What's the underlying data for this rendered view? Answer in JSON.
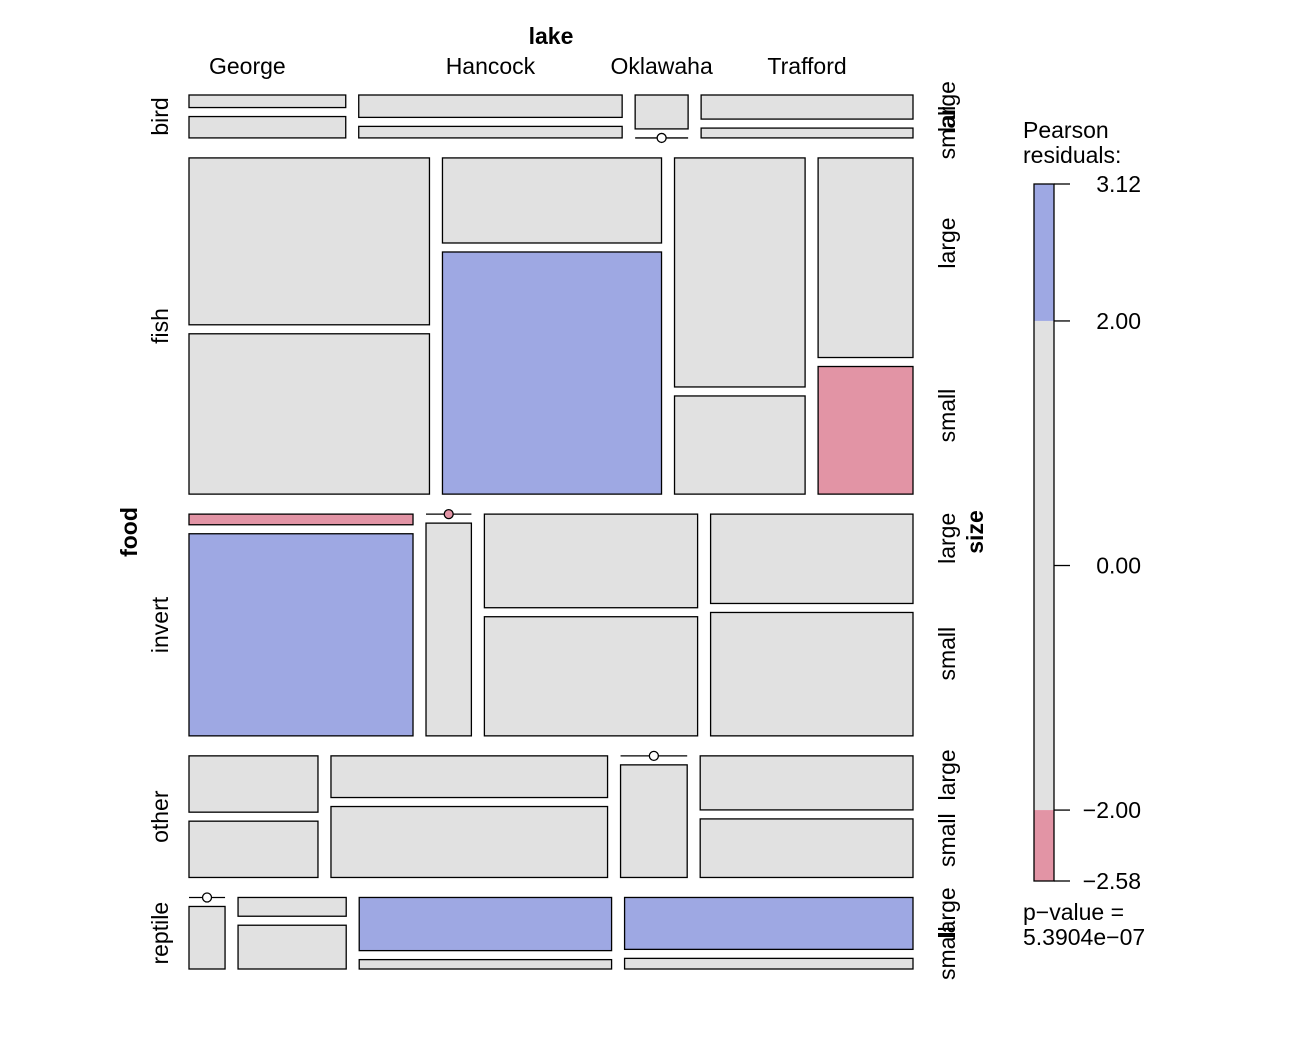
{
  "chart_data": {
    "type": "mosaic",
    "title": "",
    "variables": {
      "columns": {
        "name": "lake",
        "levels": [
          "George",
          "Hancock",
          "Oklawaha",
          "Trafford"
        ]
      },
      "rows": {
        "name": "food",
        "levels": [
          "bird",
          "fish",
          "invert",
          "other",
          "reptile"
        ]
      },
      "split": {
        "name": "size",
        "levels": [
          "large",
          "small"
        ]
      }
    },
    "row_heights": [
      0.06,
      0.47,
      0.31,
      0.17,
      0.1
    ],
    "cells": [
      {
        "food": "bird",
        "parts": [
          {
            "lake": "George",
            "frac": 0.216,
            "split": [
              0.37,
              0.63
            ],
            "residual": [
              0,
              0
            ]
          },
          {
            "lake": "Hancock",
            "frac": 0.363,
            "split": [
              0.66,
              0.34
            ],
            "residual": [
              0,
              0
            ]
          },
          {
            "lake": "Oklawaha",
            "frac": 0.073,
            "split": [
              1.0,
              0.0
            ],
            "residual": [
              0,
              0
            ]
          },
          {
            "lake": "Trafford",
            "frac": 0.292,
            "split": [
              0.71,
              0.29
            ],
            "residual": [
              0,
              0
            ]
          }
        ]
      },
      {
        "food": "fish",
        "parts": [
          {
            "lake": "George",
            "frac": 0.337,
            "split": [
              0.51,
              0.49
            ],
            "residual": [
              0,
              0
            ]
          },
          {
            "lake": "Hancock",
            "frac": 0.307,
            "split": [
              0.26,
              0.74
            ],
            "residual": [
              0,
              2.5
            ]
          },
          {
            "lake": "Oklawaha",
            "frac": 0.183,
            "split": [
              0.7,
              0.3
            ],
            "residual": [
              0,
              0
            ]
          },
          {
            "lake": "Trafford",
            "frac": 0.133,
            "split": [
              0.61,
              0.39
            ],
            "residual": [
              0,
              -2.3
            ]
          }
        ]
      },
      {
        "food": "invert",
        "parts": [
          {
            "lake": "George",
            "frac": 0.311,
            "split": [
              0.05,
              0.95
            ],
            "residual": [
              -2.2,
              2.6
            ]
          },
          {
            "lake": "Hancock",
            "frac": 0.063,
            "split": [
              0.0,
              1.0
            ],
            "residual": [
              -2.1,
              0
            ]
          },
          {
            "lake": "Oklawaha",
            "frac": 0.296,
            "split": [
              0.44,
              0.56
            ],
            "residual": [
              0,
              0
            ]
          },
          {
            "lake": "Trafford",
            "frac": 0.281,
            "split": [
              0.42,
              0.58
            ],
            "residual": [
              0,
              0
            ]
          }
        ]
      },
      {
        "food": "other",
        "parts": [
          {
            "lake": "George",
            "frac": 0.18,
            "split": [
              0.5,
              0.5
            ],
            "residual": [
              0,
              0
            ]
          },
          {
            "lake": "Hancock",
            "frac": 0.386,
            "split": [
              0.37,
              0.63
            ],
            "residual": [
              0,
              0
            ]
          },
          {
            "lake": "Oklawaha",
            "frac": 0.093,
            "split": [
              0.0,
              1.0
            ],
            "residual": [
              0,
              0
            ]
          },
          {
            "lake": "Trafford",
            "frac": 0.297,
            "split": [
              0.48,
              0.52
            ],
            "residual": [
              0,
              0
            ]
          }
        ]
      },
      {
        "food": "reptile",
        "parts": [
          {
            "lake": "George",
            "frac": 0.05,
            "split": [
              0.0,
              1.0
            ],
            "residual": [
              0,
              0
            ]
          },
          {
            "lake": "Hancock",
            "frac": 0.15,
            "split": [
              0.3,
              0.7
            ],
            "residual": [
              0,
              0
            ]
          },
          {
            "lake": "Oklawaha",
            "frac": 0.35,
            "split": [
              0.85,
              0.15
            ],
            "residual": [
              2.4,
              0
            ]
          },
          {
            "lake": "Trafford",
            "frac": 0.4,
            "split": [
              0.83,
              0.17
            ],
            "residual": [
              2.3,
              0
            ]
          }
        ]
      }
    ],
    "legend": {
      "title": "Pearson\nresiduals:",
      "title_lines": [
        "Pearson",
        "residuals:"
      ],
      "ticks": [
        "3.12",
        "2.00",
        "0.00",
        "−2.00",
        "−2.58"
      ],
      "tick_values": [
        3.12,
        2.0,
        0.0,
        -2.0,
        -2.58
      ],
      "range": [
        -2.58,
        3.12
      ],
      "pvalue_lines": [
        "p−value =",
        "5.3904e−07"
      ]
    },
    "colors": {
      "positive": "#9ea8e3",
      "negative": "#e294a5",
      "neutral": "#e1e1e1"
    }
  }
}
